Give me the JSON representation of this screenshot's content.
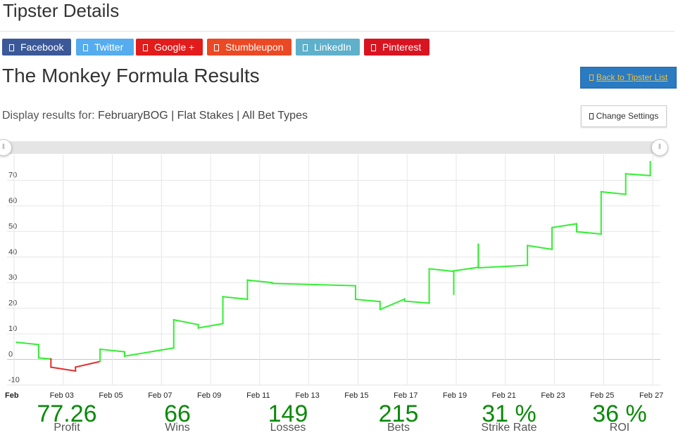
{
  "header": {
    "title": "Tipster Details"
  },
  "share_buttons": [
    {
      "label": "Facebook",
      "color": "#3b5998"
    },
    {
      "label": "Twitter",
      "color": "#55acee"
    },
    {
      "label": "Google +",
      "color": "#e21b1b"
    },
    {
      "label": "Stumbleupon",
      "color": "#eb4924"
    },
    {
      "label": "LinkedIn",
      "color": "#5fb0ca"
    },
    {
      "label": "Pinterest",
      "color": "#d91420"
    }
  ],
  "results": {
    "title": "The Monkey Formula Results",
    "back_label": "Back to Tipster List"
  },
  "display": {
    "prefix": "Display results for:",
    "selection": "FebruaryBOG | Flat Stakes | All Bet Types",
    "settings_label": "Change Settings"
  },
  "chart_data": {
    "type": "line",
    "title": "",
    "xlabel": "",
    "ylabel": "",
    "ylim": [
      -10,
      80
    ],
    "yticks": [
      -10,
      0,
      10,
      20,
      30,
      40,
      50,
      60,
      70
    ],
    "xlim": [
      1,
      27.6
    ],
    "xtick_labels": [
      {
        "x": 1,
        "label": "Feb"
      },
      {
        "x": 3,
        "label": "Feb 03"
      },
      {
        "x": 5,
        "label": "Feb 05"
      },
      {
        "x": 7,
        "label": "Feb 07"
      },
      {
        "x": 9,
        "label": "Feb 09"
      },
      {
        "x": 11,
        "label": "Feb 11"
      },
      {
        "x": 13,
        "label": "Feb 13"
      },
      {
        "x": 15,
        "label": "Feb 15"
      },
      {
        "x": 17,
        "label": "Feb 17"
      },
      {
        "x": 19,
        "label": "Feb 19"
      },
      {
        "x": 21,
        "label": "Feb 21"
      },
      {
        "x": 23,
        "label": "Feb 23"
      },
      {
        "x": 25,
        "label": "Feb 25"
      },
      {
        "x": 27,
        "label": "Feb 27"
      }
    ],
    "grid": true,
    "positive_color": "#33ee33",
    "negative_color": "#e03030",
    "series": [
      {
        "values": [
          [
            1.1,
            6.7
          ],
          [
            2.0,
            5.8
          ],
          [
            2.0,
            0.6
          ],
          [
            2.5,
            0.2
          ],
          [
            2.5,
            -3.0
          ],
          [
            3.5,
            -4.5
          ],
          [
            3.5,
            -3.0
          ],
          [
            4.5,
            -0.8
          ],
          [
            4.5,
            4.0
          ],
          [
            5.5,
            3.0
          ],
          [
            5.5,
            1.3
          ],
          [
            7.5,
            4.5
          ],
          [
            7.5,
            15.5
          ],
          [
            8.5,
            13.6
          ],
          [
            8.5,
            12.3
          ],
          [
            9.5,
            14.0
          ],
          [
            9.5,
            24.5
          ],
          [
            10.5,
            23.5
          ],
          [
            10.5,
            31.0
          ],
          [
            11.5,
            30.0
          ],
          [
            11.5,
            29.7
          ],
          [
            14.9,
            28.8
          ],
          [
            14.9,
            23.5
          ],
          [
            15.9,
            22.6
          ],
          [
            15.9,
            19.5
          ],
          [
            16.9,
            23.6
          ],
          [
            16.9,
            22.8
          ],
          [
            17.9,
            22.0
          ],
          [
            17.9,
            35.4
          ],
          [
            18.9,
            34.4
          ],
          [
            18.9,
            25.5
          ],
          [
            18.9,
            34.6
          ],
          [
            19.9,
            36.0
          ],
          [
            19.9,
            45.0
          ],
          [
            19.9,
            35.8
          ],
          [
            21.9,
            36.8
          ],
          [
            21.9,
            44.5
          ],
          [
            22.9,
            43.0
          ],
          [
            22.9,
            51.5
          ],
          [
            23.9,
            53.0
          ],
          [
            23.9,
            49.9
          ],
          [
            24.9,
            49.0
          ],
          [
            24.9,
            65.5
          ],
          [
            25.9,
            64.5
          ],
          [
            25.9,
            72.5
          ],
          [
            26.9,
            71.8
          ],
          [
            26.9,
            77.26
          ]
        ]
      }
    ]
  },
  "stats": [
    {
      "value": "77.26",
      "label": "Profit"
    },
    {
      "value": "66",
      "label": "Wins"
    },
    {
      "value": "149",
      "label": "Losses"
    },
    {
      "value": "215",
      "label": "Bets"
    },
    {
      "value": "31 %",
      "label": "Strike Rate"
    },
    {
      "value": "36 %",
      "label": "ROI"
    }
  ]
}
